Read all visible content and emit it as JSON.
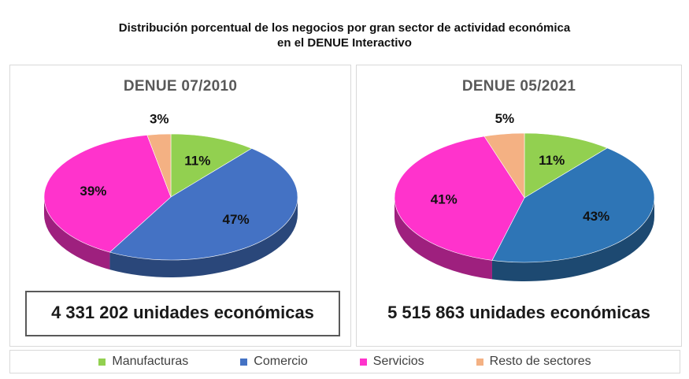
{
  "title_line1": "Distribución porcentual de los negocios por gran sector de actividad económica",
  "title_line2": "en el DENUE Interactivo",
  "chart_data": [
    {
      "type": "pie",
      "title": "DENUE 07/2010",
      "categories": [
        "Manufacturas",
        "Comercio",
        "Servicios",
        "Resto de sectores"
      ],
      "values": [
        11,
        47,
        39,
        3
      ],
      "labels": [
        "11%",
        "47%",
        "39%",
        "3%"
      ],
      "total_label": "4 331 202 unidades económicas"
    },
    {
      "type": "pie",
      "title": "DENUE 05/2021",
      "categories": [
        "Manufacturas",
        "Comercio",
        "Servicios",
        "Resto de sectores"
      ],
      "values": [
        11,
        43,
        41,
        5
      ],
      "labels": [
        "11%",
        "43%",
        "41%",
        "5%"
      ],
      "total_label": "5 515 863 unidades económicas"
    }
  ],
  "legend": [
    {
      "label": "Manufacturas",
      "color": "#92d050"
    },
    {
      "label": "Comercio",
      "color": "#4472c4"
    },
    {
      "label": "Servicios",
      "color": "#ff33cc"
    },
    {
      "label": "Resto de sectores",
      "color": "#f4b183"
    }
  ],
  "colors": {
    "left": [
      "#92d050",
      "#4472c4",
      "#ff33cc",
      "#f4b183"
    ],
    "right": [
      "#92d050",
      "#2e75b6",
      "#ff33cc",
      "#f4b183"
    ]
  }
}
